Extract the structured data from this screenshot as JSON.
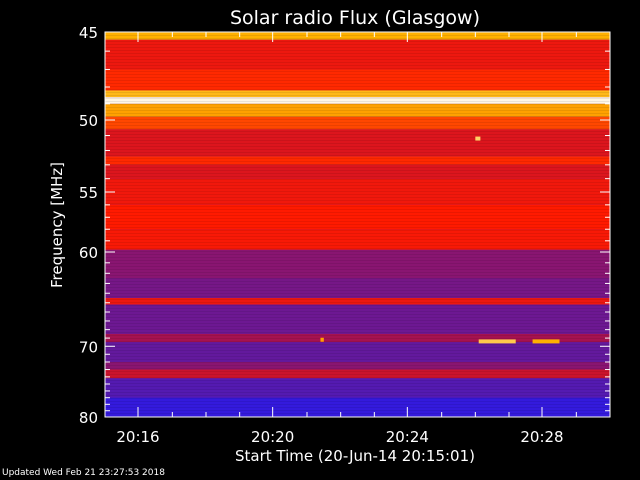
{
  "chart_data": {
    "type": "heatmap",
    "title": "Solar radio Flux (Glasgow)",
    "xlabel": "Start Time (20-Jun-14 20:15:01)",
    "ylabel": "Frequency [MHz]",
    "x_tick_labels": [
      "20:16",
      "20:20",
      "20:24",
      "20:28"
    ],
    "y_tick_labels": [
      "45",
      "50",
      "55",
      "60",
      "70",
      "80"
    ],
    "y_tick_values": [
      45,
      50,
      55,
      60,
      70,
      80
    ],
    "y_scale": "reciprocal",
    "ylim": [
      45,
      80
    ],
    "xlim_minutes": [
      0,
      15
    ],
    "colormap": [
      "#1a1aff",
      "#5a1aa8",
      "#b8103a",
      "#ff1a00",
      "#ffb000",
      "#ffffff"
    ],
    "bands": [
      {
        "f_from": 45.0,
        "f_to": 45.4,
        "level": 0.8
      },
      {
        "f_from": 45.4,
        "f_to": 47.0,
        "level": 0.55
      },
      {
        "f_from": 47.0,
        "f_to": 48.2,
        "level": 0.62
      },
      {
        "f_from": 48.2,
        "f_to": 48.6,
        "level": 0.82
      },
      {
        "f_from": 48.6,
        "f_to": 49.0,
        "level": 0.98
      },
      {
        "f_from": 49.0,
        "f_to": 49.8,
        "level": 0.78
      },
      {
        "f_from": 49.8,
        "f_to": 50.6,
        "level": 0.66
      },
      {
        "f_from": 50.6,
        "f_to": 52.4,
        "level": 0.5
      },
      {
        "f_from": 52.4,
        "f_to": 53.0,
        "level": 0.62
      },
      {
        "f_from": 53.0,
        "f_to": 54.0,
        "level": 0.5
      },
      {
        "f_from": 54.0,
        "f_to": 56.0,
        "level": 0.56
      },
      {
        "f_from": 56.0,
        "f_to": 58.0,
        "level": 0.6
      },
      {
        "f_from": 58.0,
        "f_to": 59.8,
        "level": 0.58
      },
      {
        "f_from": 59.8,
        "f_to": 62.5,
        "level": 0.3
      },
      {
        "f_from": 62.5,
        "f_to": 64.5,
        "level": 0.26
      },
      {
        "f_from": 64.5,
        "f_to": 65.2,
        "level": 0.55
      },
      {
        "f_from": 65.2,
        "f_to": 68.5,
        "level": 0.24
      },
      {
        "f_from": 68.5,
        "f_to": 69.5,
        "level": 0.36
      },
      {
        "f_from": 69.5,
        "f_to": 72.0,
        "level": 0.22
      },
      {
        "f_from": 72.0,
        "f_to": 73.0,
        "level": 0.3
      },
      {
        "f_from": 73.0,
        "f_to": 74.2,
        "level": 0.45
      },
      {
        "f_from": 74.2,
        "f_to": 77.0,
        "level": 0.18
      },
      {
        "f_from": 77.0,
        "f_to": 80.0,
        "level": 0.08
      }
    ],
    "events": [
      {
        "t_from": 11.1,
        "t_to": 12.2,
        "f": 69.4,
        "level": 0.86
      },
      {
        "t_from": 12.7,
        "t_to": 13.5,
        "f": 69.4,
        "level": 0.8
      },
      {
        "t_from": 11.0,
        "t_to": 11.15,
        "f": 51.2,
        "level": 0.88
      },
      {
        "t_from": 6.4,
        "t_to": 6.5,
        "f": 69.2,
        "level": 0.78
      }
    ]
  },
  "footer": {
    "updated": "Updated Wed Feb 21 23:27:53 2018"
  }
}
